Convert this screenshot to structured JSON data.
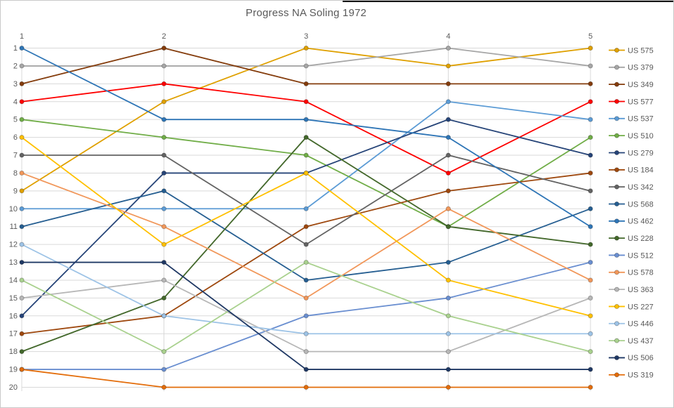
{
  "chart_data": {
    "type": "line",
    "title": "Progress NA Soling 1972",
    "subtitle": "",
    "x_ticks": [
      "1",
      "2",
      "3",
      "4",
      "5"
    ],
    "y_ticks": [
      "1",
      "2",
      "3",
      "4",
      "5",
      "6",
      "7",
      "8",
      "9",
      "10",
      "11",
      "12",
      "13",
      "14",
      "15",
      "16",
      "17",
      "18",
      "19",
      "20"
    ],
    "y_axis_inverted": true,
    "y_range": [
      1,
      20
    ],
    "grid": "horizontal-and-vertical",
    "gridline_color": "#d9d9d9",
    "axis_text_color": "#595959",
    "legend_position": "right",
    "note_ties": "shared ranks appear where two boats tied: round1 rank19 (US 512/US 319), round2 rank16 (US 184/US 446), round3 rank8 (US 279/US 227), round4 rank11 (US 510/US 228)",
    "series": [
      {
        "name": "US 575",
        "color": "#dfa000",
        "ranks": [
          9,
          4,
          1,
          2,
          1
        ]
      },
      {
        "name": "US 379",
        "color": "#a6a6a6",
        "ranks": [
          2,
          2,
          2,
          1,
          2
        ]
      },
      {
        "name": "US 349",
        "color": "#843c0c",
        "ranks": [
          3,
          1,
          3,
          3,
          3
        ]
      },
      {
        "name": "US 577",
        "color": "#fe0000",
        "ranks": [
          4,
          3,
          4,
          8,
          4
        ]
      },
      {
        "name": "US 537",
        "color": "#5b9bd5",
        "ranks": [
          10,
          10,
          10,
          4,
          5
        ]
      },
      {
        "name": "US 510",
        "color": "#70ad47",
        "ranks": [
          5,
          6,
          7,
          11,
          6
        ]
      },
      {
        "name": "US 279",
        "color": "#264478",
        "ranks": [
          16,
          8,
          8,
          5,
          7
        ]
      },
      {
        "name": "US 184",
        "color": "#9e480e",
        "ranks": [
          17,
          16,
          11,
          9,
          8
        ]
      },
      {
        "name": "US 342",
        "color": "#636363",
        "ranks": [
          7,
          7,
          12,
          7,
          9
        ]
      },
      {
        "name": "US 568",
        "color": "#255e91",
        "ranks": [
          11,
          9,
          14,
          13,
          10
        ]
      },
      {
        "name": "US 462",
        "color": "#2e75b6",
        "ranks": [
          1,
          5,
          5,
          6,
          11
        ]
      },
      {
        "name": "US 228",
        "color": "#43682b",
        "ranks": [
          18,
          15,
          6,
          11,
          12
        ]
      },
      {
        "name": "US 512",
        "color": "#698ed0",
        "ranks": [
          19,
          19,
          16,
          15,
          13
        ]
      },
      {
        "name": "US 578",
        "color": "#f1975a",
        "ranks": [
          8,
          11,
          15,
          10,
          14
        ]
      },
      {
        "name": "US 363",
        "color": "#b7b7b7",
        "ranks": [
          15,
          14,
          18,
          18,
          15
        ]
      },
      {
        "name": "US 227",
        "color": "#ffc000",
        "ranks": [
          6,
          12,
          8,
          14,
          16
        ]
      },
      {
        "name": "US 446",
        "color": "#9dc3e6",
        "ranks": [
          12,
          16,
          17,
          17,
          17
        ]
      },
      {
        "name": "US 437",
        "color": "#a9d18e",
        "ranks": [
          14,
          18,
          13,
          16,
          18
        ]
      },
      {
        "name": "US 506",
        "color": "#1f3864",
        "ranks": [
          13,
          13,
          19,
          19,
          19
        ]
      },
      {
        "name": "US 319",
        "color": "#e36c09",
        "ranks": [
          19,
          20,
          20,
          20,
          20
        ]
      }
    ]
  }
}
